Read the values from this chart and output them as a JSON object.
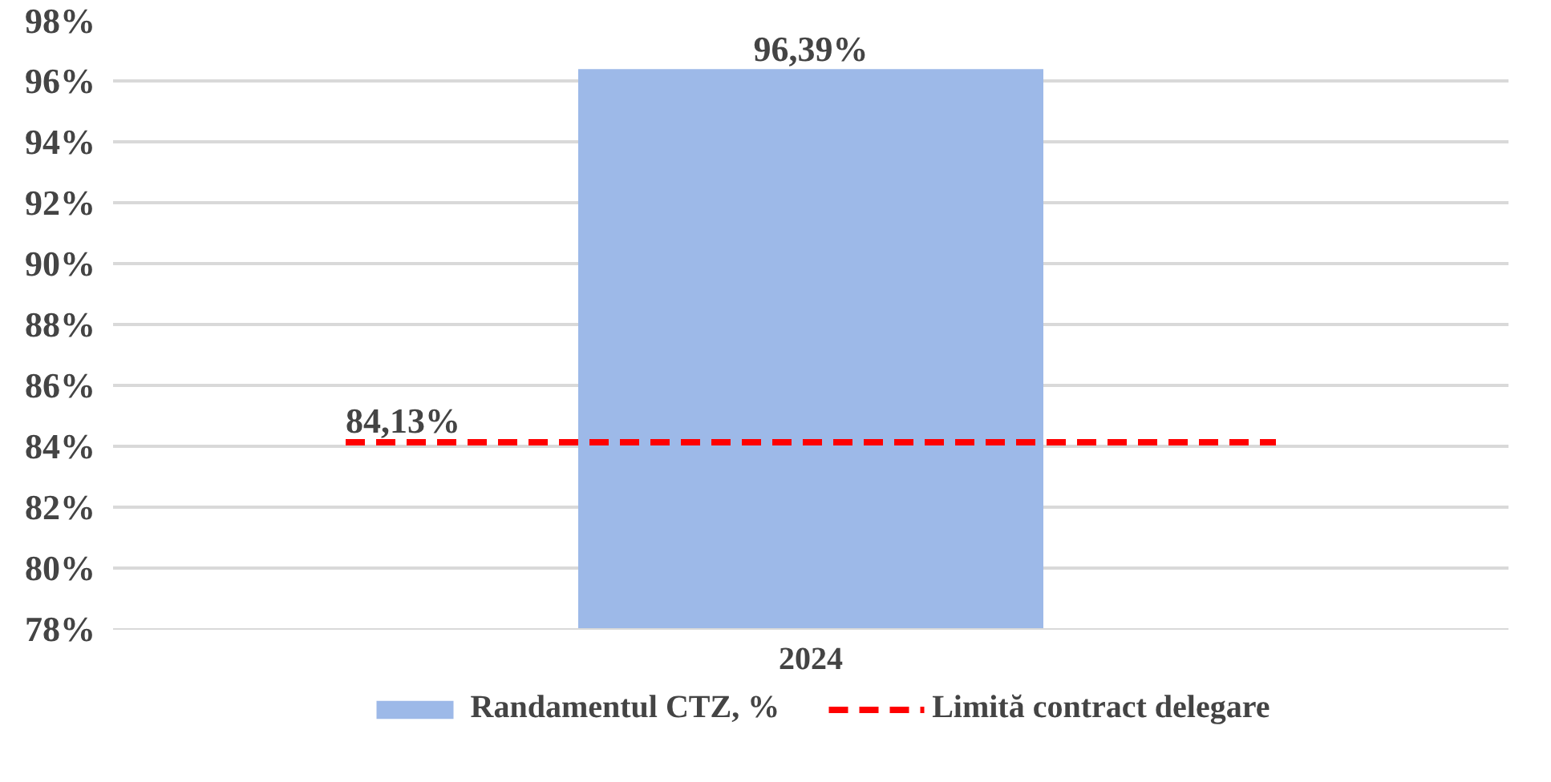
{
  "chart_data": {
    "type": "bar",
    "categories": [
      "2024"
    ],
    "series": [
      {
        "name": "Randamentul CTZ, %",
        "color": "#9db9e8",
        "values": [
          96.39
        ],
        "value_labels": [
          "96,39%"
        ]
      }
    ],
    "ylim": [
      78,
      98
    ],
    "yticks": [
      {
        "value": 78,
        "label": "78%"
      },
      {
        "value": 80,
        "label": "80%"
      },
      {
        "value": 82,
        "label": "82%"
      },
      {
        "value": 84,
        "label": "84%"
      },
      {
        "value": 86,
        "label": "86%"
      },
      {
        "value": 88,
        "label": "88%"
      },
      {
        "value": 90,
        "label": "90%"
      },
      {
        "value": 92,
        "label": "92%"
      },
      {
        "value": 94,
        "label": "94%"
      },
      {
        "value": 96,
        "label": "96%"
      },
      {
        "value": 98,
        "label": "98%"
      }
    ],
    "ref_lines": [
      {
        "axis": "y",
        "value": 84.13,
        "label": "Limită contract delegare",
        "color": "#ff0000",
        "line_style": "dashed"
      }
    ],
    "annotations": [
      {
        "text": "84,13%",
        "y": 84.13
      }
    ],
    "grid": "y",
    "legend": "bottom"
  }
}
